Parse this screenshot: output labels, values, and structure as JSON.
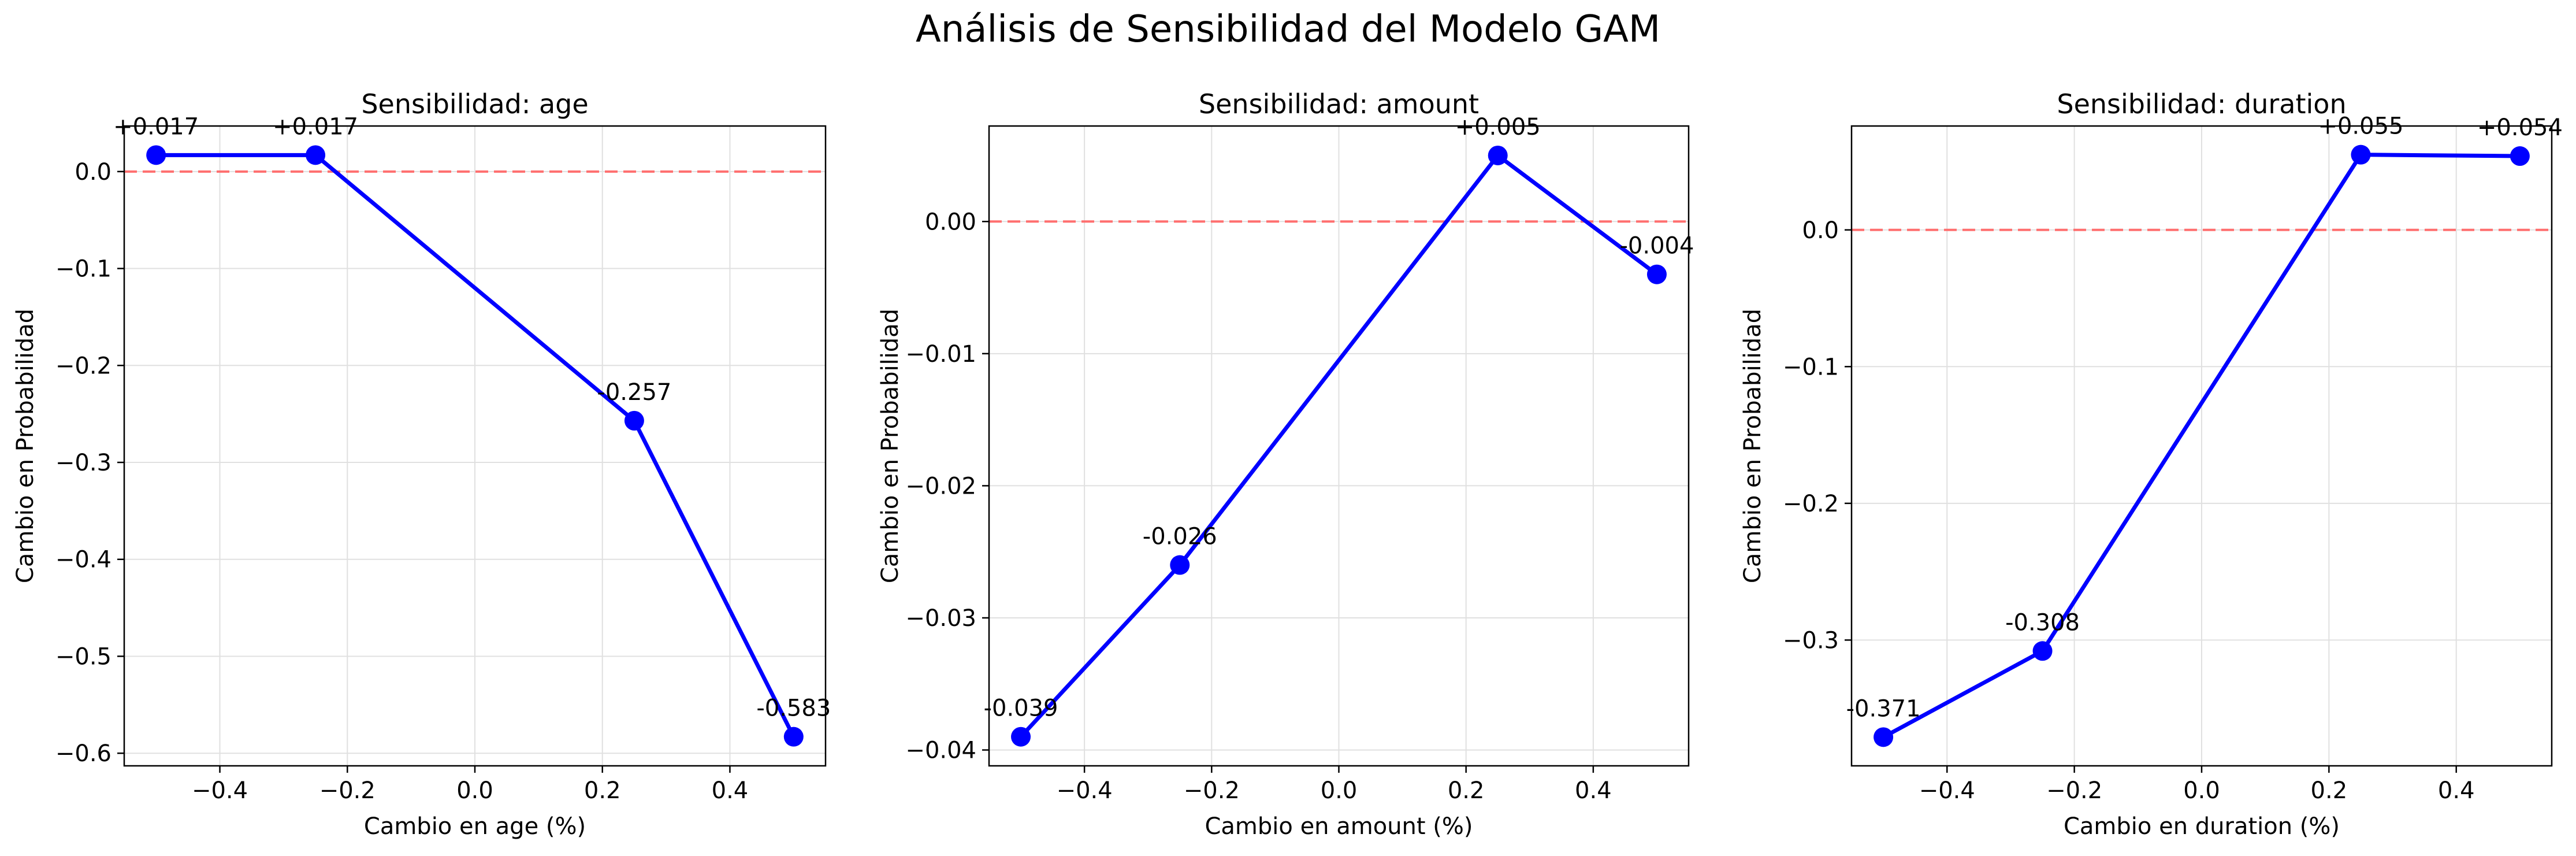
{
  "figure": {
    "suptitle": "Análisis de Sensibilidad del Modelo GAM"
  },
  "colors": {
    "series": "#0000ff",
    "zero_line": "#ff6f6f",
    "grid": "#e0e0e0",
    "axes": "#000000"
  },
  "chart_data": [
    {
      "type": "line",
      "title": "Sensibilidad: age",
      "xlabel": "Cambio en age (%)",
      "ylabel": "Cambio en Probabilidad",
      "x": [
        -0.5,
        -0.25,
        0.25,
        0.5
      ],
      "values": [
        0.017,
        0.017,
        -0.257,
        -0.583
      ],
      "point_labels": [
        "+0.017",
        "+0.017",
        "-0.257",
        "-0.583"
      ],
      "xlim": [
        -0.55,
        0.55
      ],
      "ylim": [
        -0.613,
        0.047
      ],
      "xticks": [
        -0.4,
        -0.2,
        0.0,
        0.2,
        0.4
      ],
      "xtick_labels": [
        "−0.4",
        "−0.2",
        "0.0",
        "0.2",
        "0.4"
      ],
      "yticks": [
        0.0,
        -0.1,
        -0.2,
        -0.3,
        -0.4,
        -0.5,
        -0.6
      ],
      "ytick_labels": [
        "0.0",
        "−0.1",
        "−0.2",
        "−0.3",
        "−0.4",
        "−0.5",
        "−0.6"
      ],
      "reference_line": 0,
      "grid": true
    },
    {
      "type": "line",
      "title": "Sensibilidad: amount",
      "xlabel": "Cambio en amount (%)",
      "ylabel": "Cambio en Probabilidad",
      "x": [
        -0.5,
        -0.25,
        0.25,
        0.5
      ],
      "values": [
        -0.039,
        -0.026,
        0.005,
        -0.004
      ],
      "point_labels": [
        "-0.039",
        "-0.026",
        "+0.005",
        "-0.004"
      ],
      "xlim": [
        -0.55,
        0.55
      ],
      "ylim": [
        -0.0412,
        0.00723
      ],
      "xticks": [
        -0.4,
        -0.2,
        0.0,
        0.2,
        0.4
      ],
      "xtick_labels": [
        "−0.4",
        "−0.2",
        "0.0",
        "0.2",
        "0.4"
      ],
      "yticks": [
        0.0,
        -0.01,
        -0.02,
        -0.03,
        -0.04
      ],
      "ytick_labels": [
        "0.00",
        "−0.01",
        "−0.02",
        "−0.03",
        "−0.04"
      ],
      "reference_line": 0,
      "grid": true
    },
    {
      "type": "line",
      "title": "Sensibilidad: duration",
      "xlabel": "Cambio en duration (%)",
      "ylabel": "Cambio en Probabilidad",
      "x": [
        -0.5,
        -0.25,
        0.25,
        0.5
      ],
      "values": [
        -0.371,
        -0.308,
        0.055,
        0.054
      ],
      "point_labels": [
        "-0.371",
        "-0.308",
        "+0.055",
        "+0.054"
      ],
      "xlim": [
        -0.55,
        0.55
      ],
      "ylim": [
        -0.392,
        0.076
      ],
      "xticks": [
        -0.4,
        -0.2,
        0.0,
        0.2,
        0.4
      ],
      "xtick_labels": [
        "−0.4",
        "−0.2",
        "0.0",
        "0.2",
        "0.4"
      ],
      "yticks": [
        0.0,
        -0.1,
        -0.2,
        -0.3
      ],
      "ytick_labels": [
        "0.0",
        "−0.1",
        "−0.2",
        "−0.3"
      ],
      "reference_line": 0,
      "grid": true
    }
  ]
}
